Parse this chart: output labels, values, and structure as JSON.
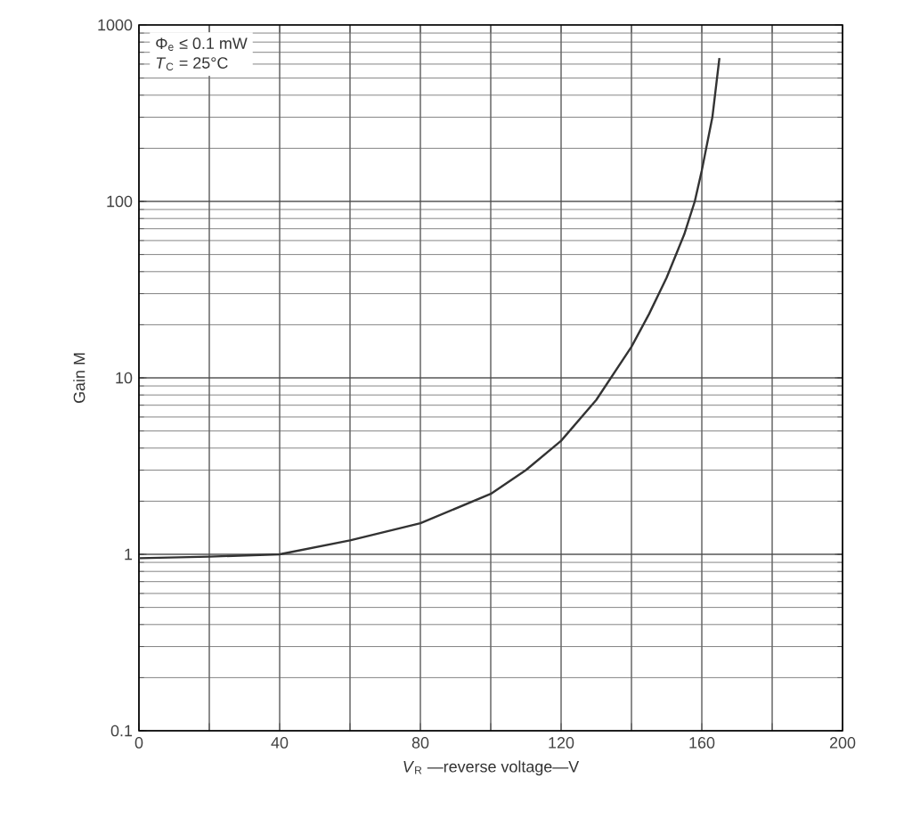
{
  "chart_data": {
    "type": "line",
    "xlabel": "*V*$_{R}$ —reverse voltage—V",
    "ylabel": "Gain M",
    "annotations": [
      "Φ$_{e}$ ≤ 0.1 mW",
      "*T*$_{C}$ = 25°C"
    ],
    "x": [
      0,
      20,
      40,
      60,
      80,
      100,
      110,
      120,
      130,
      140,
      145,
      150,
      155,
      158,
      160,
      163,
      165
    ],
    "series": [
      {
        "color": "#333333",
        "values": [
          0.95,
          0.97,
          1.0,
          1.2,
          1.5,
          2.2,
          3.0,
          4.4,
          7.5,
          15,
          23,
          37,
          65,
          100,
          150,
          300,
          650
        ]
      }
    ],
    "xlim": [
      0,
      200
    ],
    "ylim": [
      0.1,
      1000
    ],
    "xticks": [
      0,
      {
        "value": 20,
        "label": null
      },
      40,
      {
        "value": 60,
        "label": null
      },
      80,
      {
        "value": 100,
        "label": null
      },
      120,
      {
        "value": 140,
        "label": null
      },
      160,
      {
        "value": 180,
        "label": null
      },
      200
    ],
    "yticks": [
      0.1,
      1,
      10,
      100,
      1000
    ],
    "log": "y",
    "grid": true,
    "marker": "none",
    "line_style": "solid"
  }
}
